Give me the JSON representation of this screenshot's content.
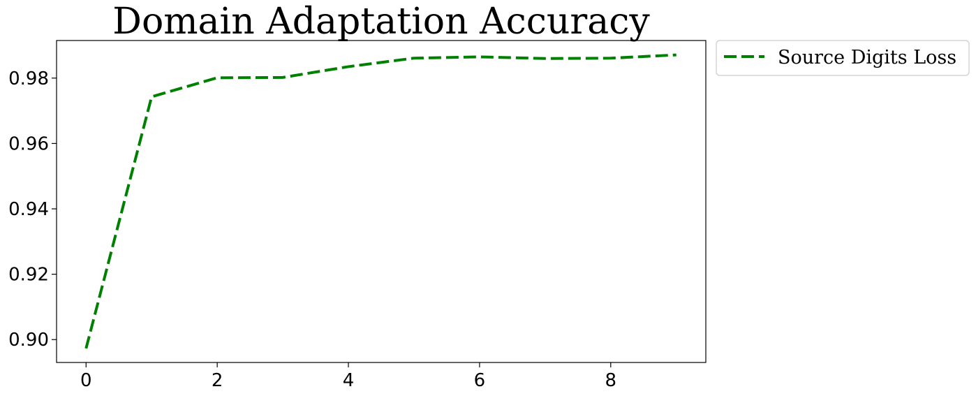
{
  "chart_data": {
    "type": "line",
    "title": "Domain Adaptation Accuracy",
    "xlabel": "",
    "ylabel": "",
    "x": [
      0,
      1,
      2,
      3,
      4,
      5,
      6,
      7,
      8,
      9
    ],
    "series": [
      {
        "name": "Source Digits Loss",
        "values": [
          0.8973,
          0.9743,
          0.9801,
          0.9802,
          0.9835,
          0.9861,
          0.9865,
          0.986,
          0.9861,
          0.9871
        ],
        "color": "#008000",
        "line_style": "dashed"
      }
    ],
    "xlim": [
      -0.45,
      9.45
    ],
    "ylim": [
      0.893,
      0.9915
    ],
    "xticks": [
      0,
      2,
      4,
      6,
      8
    ],
    "xtick_labels": [
      "0",
      "2",
      "4",
      "6",
      "8"
    ],
    "yticks": [
      0.9,
      0.92,
      0.94,
      0.96,
      0.98
    ],
    "ytick_labels": [
      "0.90",
      "0.92",
      "0.94",
      "0.96",
      "0.98"
    ],
    "grid": false,
    "legend_position": "outside-top-right"
  }
}
